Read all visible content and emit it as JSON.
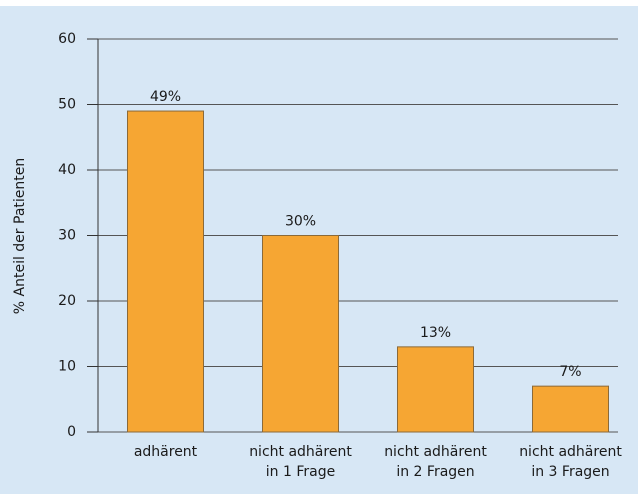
{
  "chart_data": {
    "type": "bar",
    "ylabel": "% Anteil der Patienten",
    "categories": [
      [
        "adhärent"
      ],
      [
        "nicht adhärent",
        "in 1 Frage"
      ],
      [
        "nicht adhärent",
        "in 2 Fragen"
      ],
      [
        "nicht adhärent",
        "in 3 Fragen"
      ]
    ],
    "values": [
      49,
      30,
      13,
      7
    ],
    "value_labels": [
      "49%",
      "30%",
      "13%",
      "7%"
    ],
    "color": "#f6a633",
    "ylim": [
      0,
      60
    ],
    "yticks": [
      0,
      10,
      20,
      30,
      40,
      50,
      60
    ],
    "grid": true
  }
}
